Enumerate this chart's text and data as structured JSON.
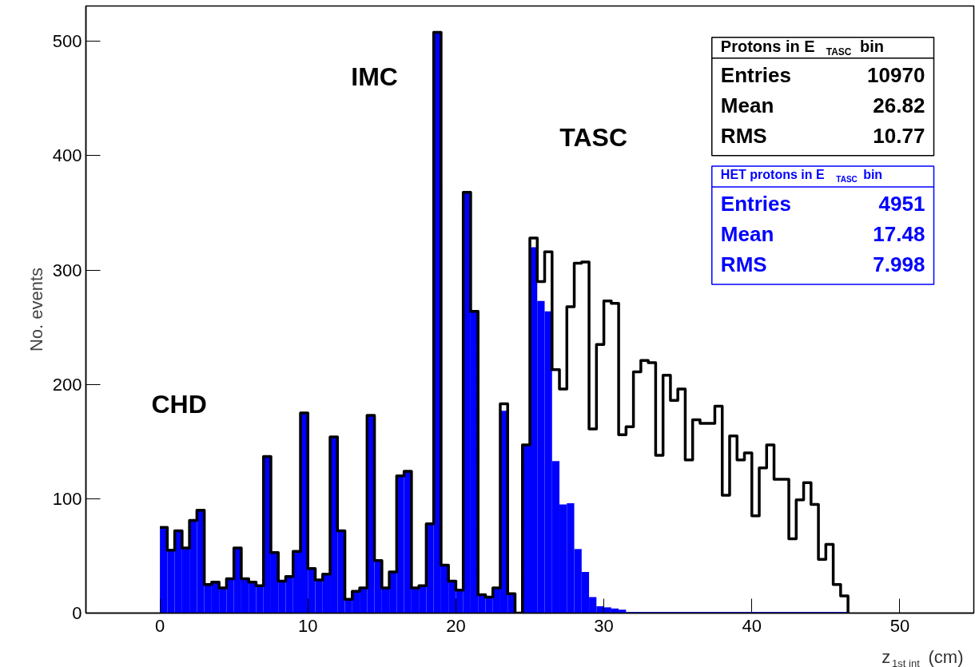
{
  "chart_data": {
    "type": "histogram",
    "xlabel": "z$_{1st int}$ (cm)",
    "ylabel": "No. events",
    "bins": [
      0,
      0.5,
      1,
      1.5,
      2,
      2.5,
      3,
      3.5,
      4,
      4.5,
      5,
      5.5,
      6,
      6.5,
      7,
      7.5,
      8,
      8.5,
      9,
      9.5,
      10,
      10.5,
      11,
      11.5,
      12,
      12.5,
      13,
      13.5,
      14,
      14.5,
      15,
      15.5,
      16,
      16.5,
      17,
      17.5,
      18,
      18.5,
      19,
      19.5,
      20,
      20.5,
      21,
      21.5,
      22,
      22.5,
      23,
      23.5,
      24,
      24.5,
      25,
      25.5,
      26,
      26.5,
      27,
      27.5,
      28,
      28.5,
      29,
      29.5,
      30,
      30.5,
      31,
      31.5,
      32,
      32.5,
      33,
      33.5,
      34,
      34.5,
      35,
      35.5,
      36,
      36.5,
      37,
      37.5,
      38,
      38.5,
      39,
      39.5,
      40,
      40.5,
      41,
      41.5,
      42,
      42.5,
      43,
      43.5,
      44,
      44.5,
      45,
      45.5,
      46,
      46.5
    ],
    "series": [
      {
        "name": "Protons in E$_{TASC}$ bin",
        "type": "step",
        "color": "#000000",
        "x": [
          0,
          0.5,
          1,
          1.5,
          2,
          2.5,
          3,
          3.5,
          4,
          4.5,
          5,
          5.5,
          6,
          6.5,
          7,
          7.5,
          8,
          8.5,
          9,
          9.5,
          10,
          10.5,
          11,
          11.5,
          12,
          12.5,
          13,
          13.5,
          14,
          14.5,
          15,
          15.5,
          16,
          16.5,
          17,
          17.5,
          18,
          18.5,
          19,
          19.5,
          20,
          20.5,
          21,
          21.5,
          22,
          22.5,
          23,
          23.5,
          24,
          24.5,
          25,
          25.5,
          26,
          26.5,
          27,
          27.5,
          28,
          28.5,
          29,
          29.5,
          30,
          30.5,
          31,
          31.5,
          32,
          32.5,
          33,
          33.5,
          34,
          34.5,
          35,
          35.5,
          36,
          36.5,
          37,
          37.5,
          38,
          38.5,
          39,
          39.5,
          40,
          40.5,
          41,
          41.5,
          42,
          42.5,
          43,
          43.5,
          44,
          44.5,
          45,
          45.5,
          46,
          46.5
        ],
        "values": [
          75,
          55,
          72,
          57,
          81,
          90,
          25,
          27,
          22,
          30,
          57,
          30,
          27,
          24,
          137,
          53,
          28,
          32,
          54,
          175,
          39,
          29,
          34,
          154,
          72,
          12,
          19,
          22,
          173,
          46,
          22,
          36,
          120,
          124,
          22,
          24,
          78,
          508,
          42,
          28,
          20,
          368,
          264,
          16,
          14,
          22,
          183,
          17,
          0,
          147,
          328,
          290,
          316,
          213,
          196,
          268,
          306,
          307,
          161,
          235,
          273,
          271,
          156,
          163,
          211,
          221,
          219,
          138,
          208,
          186,
          196,
          134,
          169,
          166,
          166,
          181,
          103,
          155,
          134,
          140,
          85,
          127,
          147,
          117,
          117,
          65,
          99,
          114,
          95,
          47,
          60,
          25,
          15,
          0
        ]
      },
      {
        "name": "HET protons in E$_{TASC}$ bin",
        "color": "#0000ff",
        "values": [
          75,
          55,
          72,
          57,
          81,
          90,
          25,
          27,
          22,
          30,
          57,
          30,
          27,
          24,
          137,
          53,
          28,
          32,
          54,
          175,
          39,
          29,
          34,
          154,
          72,
          12,
          19,
          22,
          173,
          46,
          22,
          36,
          120,
          124,
          22,
          24,
          78,
          508,
          42,
          28,
          20,
          368,
          264,
          16,
          14,
          22,
          177,
          17,
          0,
          147,
          320,
          273,
          264,
          133,
          95,
          96,
          56,
          36,
          14,
          6,
          5,
          4,
          3,
          1,
          1,
          1,
          1,
          1,
          1,
          1,
          1,
          1,
          1,
          1,
          1,
          1,
          1,
          1,
          1,
          1,
          1,
          1,
          1,
          1,
          1,
          1,
          1,
          1,
          1,
          1,
          1,
          1,
          1
        ]
      }
    ],
    "annotations": [
      "CHD",
      "IMC",
      "TASC",
      "Entries",
      "10970",
      "Mean",
      "26.82",
      "RMS",
      "10.77",
      "Entries",
      "4951",
      "Mean",
      "17.48",
      "RMS",
      "7.998"
    ],
    "xlim": [
      -5,
      55
    ],
    "ylim": [
      0,
      531
    ],
    "xticks": [
      0,
      10,
      20,
      30,
      40,
      50
    ],
    "yticks": [
      0,
      100,
      200,
      300,
      400,
      500
    ],
    "grid": false
  }
}
